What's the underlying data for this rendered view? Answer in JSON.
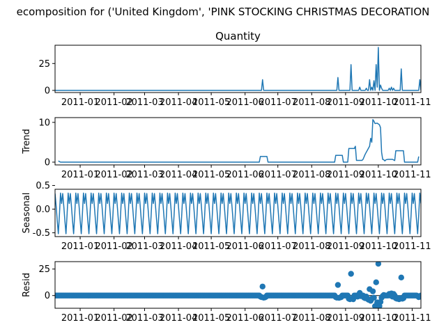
{
  "figure": {
    "suptitle": "ecomposition for ('United Kingdom', 'PINK STOCKING CHRISTMAS DECORATION"
  },
  "colors": {
    "series": "#1f77b4",
    "axes": "#000000",
    "background": "#ffffff"
  },
  "chart_data": [
    {
      "type": "line",
      "title": "Quantity",
      "ylabel": "",
      "xlabel": "",
      "x_ticks": [
        "2011-01",
        "2011-02",
        "2011-03",
        "2011-04",
        "2011-05",
        "2011-06",
        "2011-07",
        "2011-08",
        "2011-09",
        "2011-10",
        "2011-11"
      ],
      "x_range": [
        "2010-12-09",
        "2011-11-09"
      ],
      "ylim": [
        -2,
        42
      ],
      "y_ticks": [
        "0",
        "25"
      ],
      "y_tick_values": [
        0,
        25
      ],
      "baseline": 0,
      "points": [
        [
          "2011-06-17",
          10
        ],
        [
          "2011-08-25",
          12
        ],
        [
          "2011-09-06",
          24
        ],
        [
          "2011-09-14",
          3
        ],
        [
          "2011-09-20",
          2
        ],
        [
          "2011-09-23",
          10
        ],
        [
          "2011-09-25",
          3
        ],
        [
          "2011-09-27",
          9
        ],
        [
          "2011-09-29",
          24
        ],
        [
          "2011-09-30",
          3
        ],
        [
          "2011-10-01",
          40
        ],
        [
          "2011-10-03",
          5
        ],
        [
          "2011-10-04",
          2
        ],
        [
          "2011-10-11",
          2
        ],
        [
          "2011-10-13",
          3
        ],
        [
          "2011-10-15",
          2
        ],
        [
          "2011-10-22",
          20
        ],
        [
          "2011-11-08",
          10
        ]
      ]
    },
    {
      "type": "line",
      "title": "",
      "ylabel": "Trend",
      "xlabel": "",
      "x_ticks": [
        "2011-01",
        "2011-02",
        "2011-03",
        "2011-04",
        "2011-05",
        "2011-06",
        "2011-07",
        "2011-08",
        "2011-09",
        "2011-10",
        "2011-11"
      ],
      "x_range": [
        "2010-12-09",
        "2011-11-09"
      ],
      "ylim": [
        -0.7,
        11.2
      ],
      "y_ticks": [
        "0",
        "10"
      ],
      "y_tick_values": [
        0,
        10
      ],
      "points": [
        [
          "2010-12-12",
          0.3
        ],
        [
          "2010-12-14",
          0
        ],
        [
          "2011-06-14",
          0
        ],
        [
          "2011-06-15",
          1.43
        ],
        [
          "2011-06-21",
          1.43
        ],
        [
          "2011-06-22",
          0
        ],
        [
          "2011-08-22",
          0
        ],
        [
          "2011-08-23",
          1.71
        ],
        [
          "2011-08-29",
          1.71
        ],
        [
          "2011-08-30",
          0
        ],
        [
          "2011-09-03",
          0
        ],
        [
          "2011-09-04",
          3.43
        ],
        [
          "2011-09-09",
          3.43
        ],
        [
          "2011-09-10",
          4
        ],
        [
          "2011-09-11",
          0.43
        ],
        [
          "2011-09-16",
          0.43
        ],
        [
          "2011-09-17",
          0.7
        ],
        [
          "2011-09-19",
          2
        ],
        [
          "2011-09-21",
          3
        ],
        [
          "2011-09-23",
          4
        ],
        [
          "2011-09-24",
          6
        ],
        [
          "2011-09-25",
          5
        ],
        [
          "2011-09-26",
          10.7
        ],
        [
          "2011-09-27",
          10.3
        ],
        [
          "2011-09-28",
          9.7
        ],
        [
          "2011-09-30",
          9.8
        ],
        [
          "2011-10-02",
          9.4
        ],
        [
          "2011-10-03",
          8.7
        ],
        [
          "2011-10-04",
          2.5
        ],
        [
          "2011-10-05",
          0.7
        ],
        [
          "2011-10-06",
          0.6
        ],
        [
          "2011-10-07",
          0.3
        ],
        [
          "2011-10-08",
          0.6
        ],
        [
          "2011-10-10",
          0.7
        ],
        [
          "2011-10-14",
          0.7
        ],
        [
          "2011-10-16",
          0.4
        ],
        [
          "2011-10-17",
          2.86
        ],
        [
          "2011-10-24",
          2.86
        ],
        [
          "2011-10-25",
          0
        ],
        [
          "2011-11-06",
          0
        ],
        [
          "2011-11-07",
          1.43
        ]
      ]
    },
    {
      "type": "line",
      "title": "",
      "ylabel": "Seasonal",
      "xlabel": "",
      "x_ticks": [
        "2011-01",
        "2011-02",
        "2011-03",
        "2011-04",
        "2011-05",
        "2011-06",
        "2011-07",
        "2011-08",
        "2011-09",
        "2011-10",
        "2011-11"
      ],
      "x_range": [
        "2010-12-09",
        "2011-11-09"
      ],
      "ylim": [
        -0.58,
        0.42
      ],
      "y_ticks": [
        "0.0",
        "0.5",
        "-0.5"
      ],
      "y_tick_values": [
        0,
        0.5,
        -0.5
      ],
      "period_days": 7,
      "weekly_pattern": [
        0.33,
        0.06,
        -0.24,
        -0.52,
        -0.12,
        0.34,
        0.12
      ]
    },
    {
      "type": "scatter",
      "title": "",
      "ylabel": "Resid",
      "xlabel": "",
      "x_ticks": [
        "2011-01",
        "2011-02",
        "2011-03",
        "2011-04",
        "2011-05",
        "2011-06",
        "2011-07",
        "2011-08",
        "2011-09",
        "2011-10",
        "2011-11"
      ],
      "x_range": [
        "2010-12-09",
        "2011-11-09"
      ],
      "ylim": [
        -12,
        32
      ],
      "y_ticks": [
        "0",
        "25"
      ],
      "y_tick_values": [
        0,
        25
      ],
      "baseline": 0,
      "points": [
        [
          "2011-06-15",
          -1
        ],
        [
          "2011-06-16",
          -1.5
        ],
        [
          "2011-06-17",
          8.5
        ],
        [
          "2011-06-18",
          -2
        ],
        [
          "2011-06-19",
          -1.8
        ],
        [
          "2011-06-20",
          -1.3
        ],
        [
          "2011-08-23",
          -1.5
        ],
        [
          "2011-08-24",
          -2
        ],
        [
          "2011-08-25",
          10
        ],
        [
          "2011-08-26",
          -2.2
        ],
        [
          "2011-08-27",
          -1.8
        ],
        [
          "2011-08-28",
          -1.5
        ],
        [
          "2011-09-04",
          -3
        ],
        [
          "2011-09-05",
          -3.5
        ],
        [
          "2011-09-06",
          20.5
        ],
        [
          "2011-09-07",
          -3
        ],
        [
          "2011-09-08",
          -3.5
        ],
        [
          "2011-09-12",
          -1
        ],
        [
          "2011-09-13",
          -0.5
        ],
        [
          "2011-09-14",
          2.5
        ],
        [
          "2011-09-15",
          -0.5
        ],
        [
          "2011-09-18",
          -2
        ],
        [
          "2011-09-19",
          -2.5
        ],
        [
          "2011-09-20",
          -1
        ],
        [
          "2011-09-21",
          -3
        ],
        [
          "2011-09-22",
          -4
        ],
        [
          "2011-09-23",
          6
        ],
        [
          "2011-09-24",
          -5
        ],
        [
          "2011-09-25",
          -3
        ],
        [
          "2011-09-26",
          4
        ],
        [
          "2011-09-27",
          -2
        ],
        [
          "2011-09-28",
          -10
        ],
        [
          "2011-09-29",
          12.5
        ],
        [
          "2011-09-30",
          -6.5
        ],
        [
          "2011-10-01",
          30
        ],
        [
          "2011-10-02",
          -10
        ],
        [
          "2011-10-03",
          -6
        ],
        [
          "2011-10-04",
          -2
        ],
        [
          "2011-10-05",
          -0.5
        ],
        [
          "2011-10-06",
          0.5
        ],
        [
          "2011-10-11",
          1.5
        ],
        [
          "2011-10-12",
          0
        ],
        [
          "2011-10-13",
          2
        ],
        [
          "2011-10-14",
          -1
        ],
        [
          "2011-10-15",
          1.5
        ],
        [
          "2011-10-17",
          -2.5
        ],
        [
          "2011-10-18",
          -3
        ],
        [
          "2011-10-19",
          -2.5
        ],
        [
          "2011-10-20",
          -3.5
        ],
        [
          "2011-10-21",
          -2.5
        ],
        [
          "2011-10-22",
          17
        ],
        [
          "2011-10-23",
          -3
        ],
        [
          "2011-10-24",
          -2.5
        ],
        [
          "2011-11-06",
          -0.5
        ],
        [
          "2011-11-07",
          -1.5
        ],
        [
          "2011-11-08",
          -1
        ]
      ]
    }
  ]
}
